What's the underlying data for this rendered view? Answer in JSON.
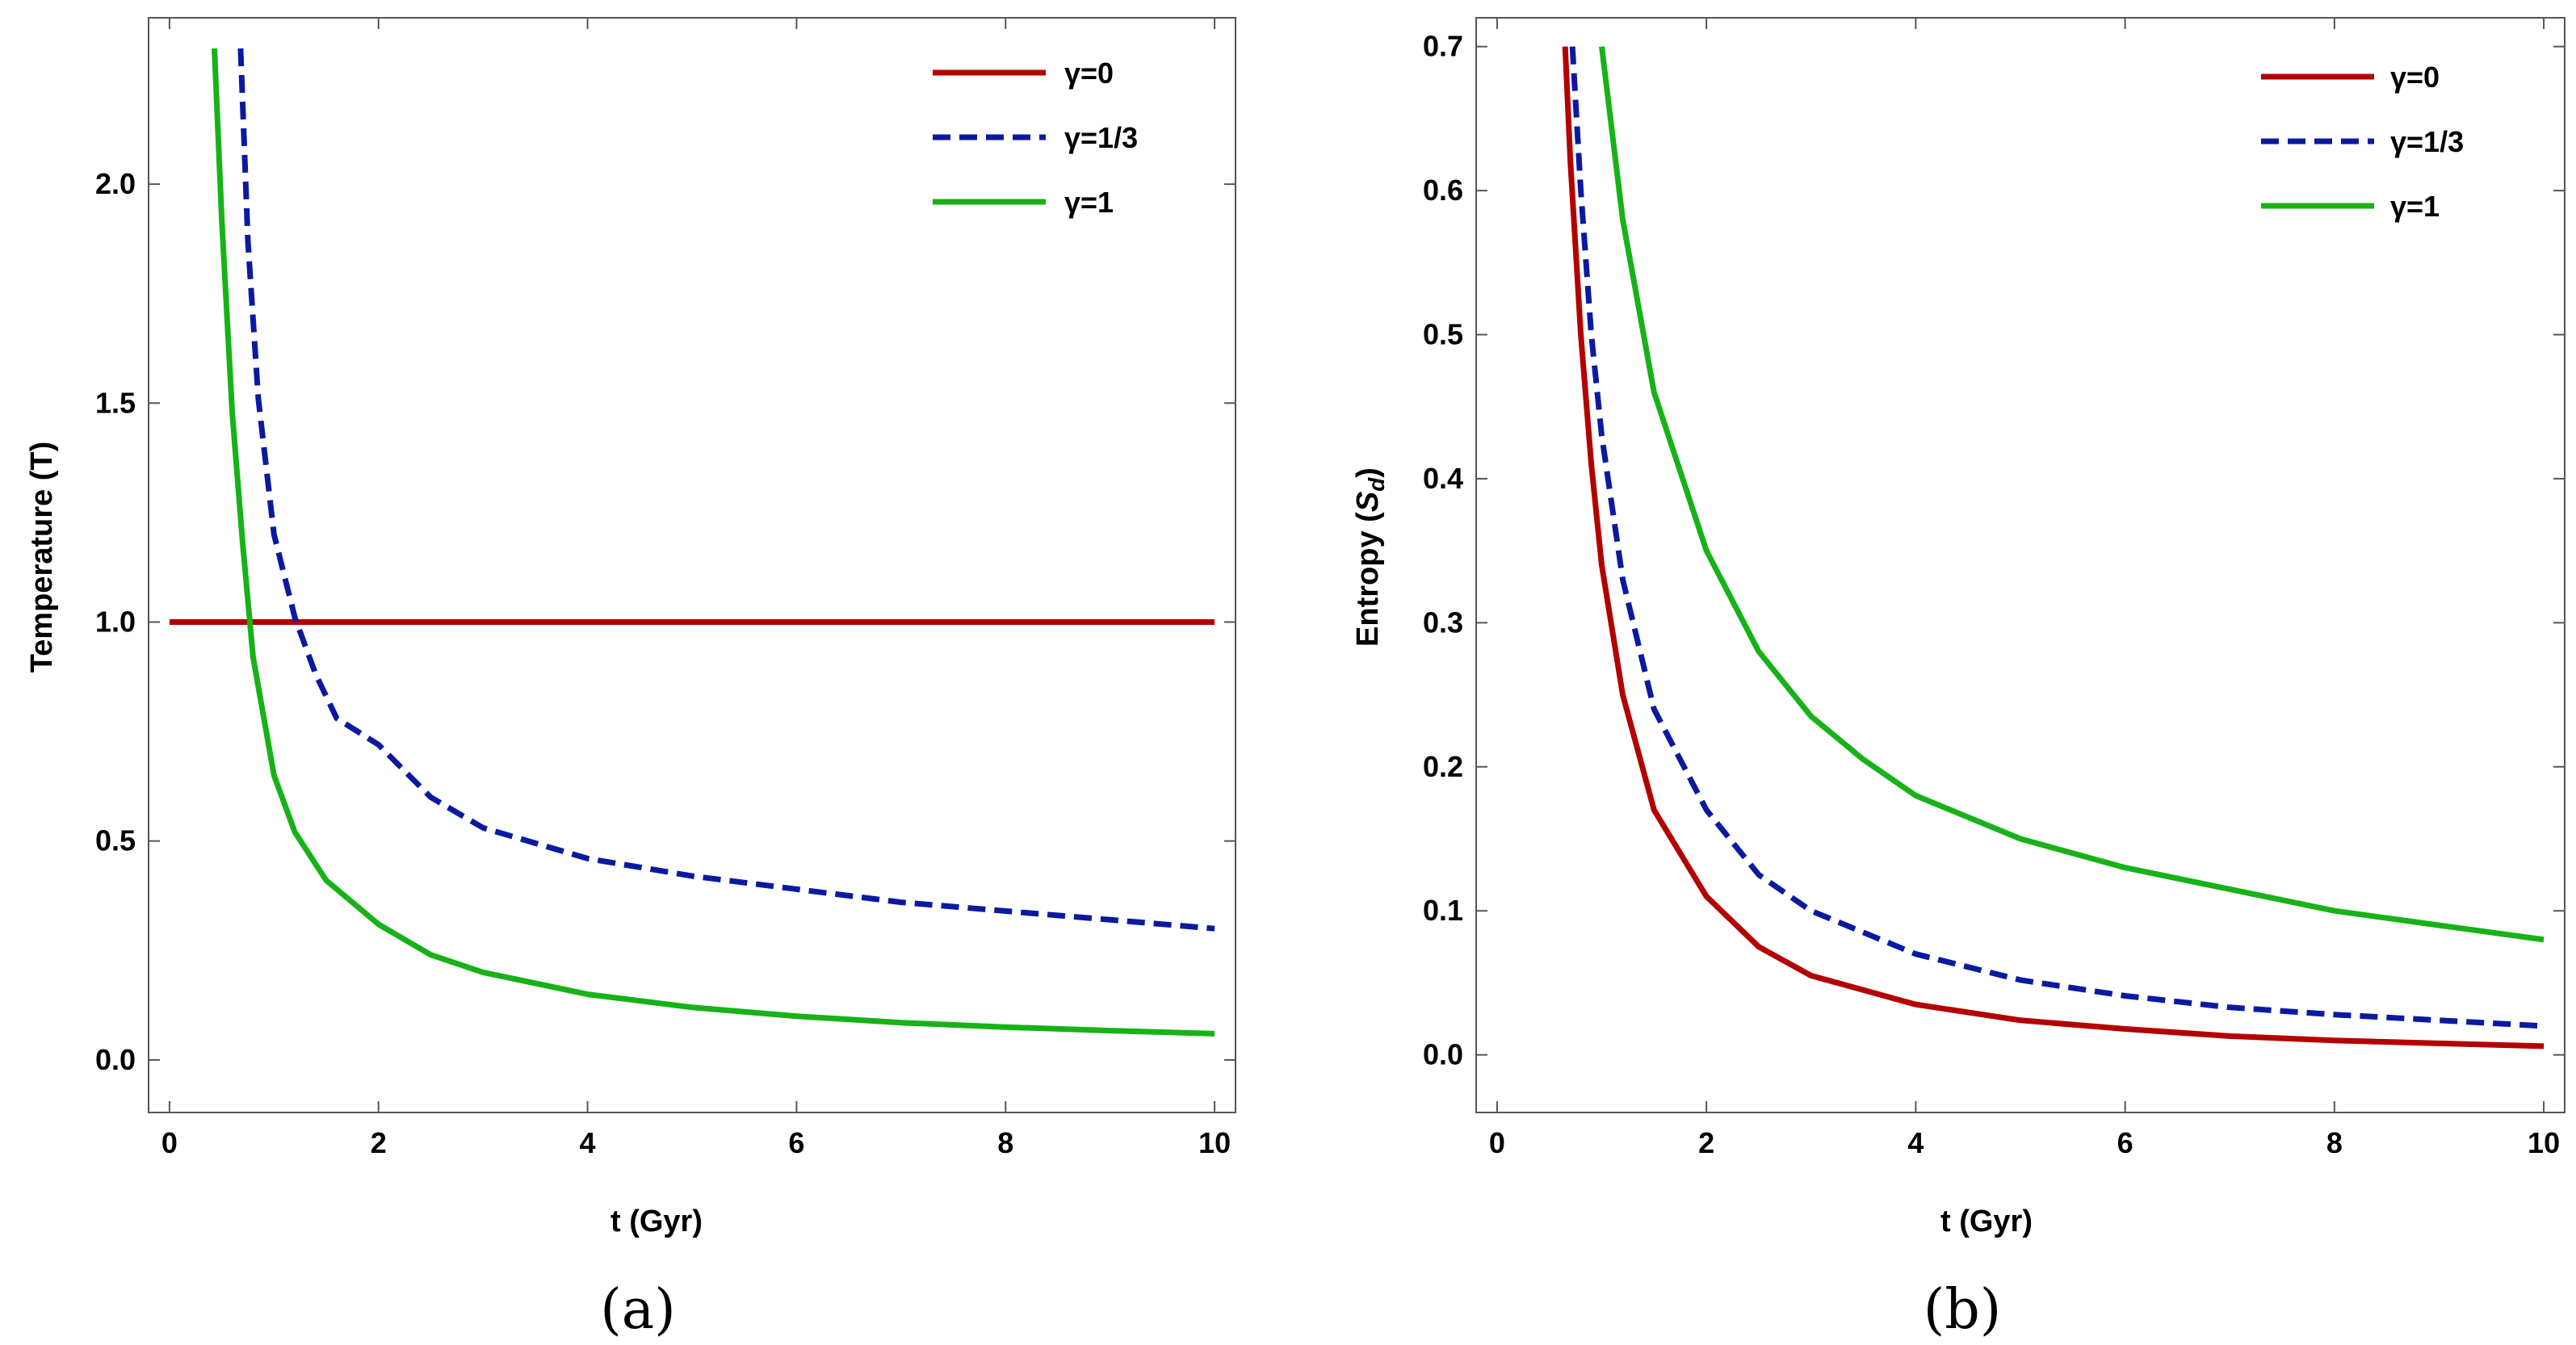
{
  "colors": {
    "gamma0": "#b30000",
    "gamma13": "#0a1aa0",
    "gamma1": "#17b217",
    "frame": "#555555"
  },
  "chart_data": [
    {
      "type": "line",
      "caption": "(a)",
      "xlabel": "t (Gyr)",
      "ylabel": "Temperature (T)",
      "xlim": [
        -0.2,
        10.2
      ],
      "ylim": [
        -0.12,
        2.38
      ],
      "xticks": [
        0,
        2,
        4,
        6,
        8,
        10
      ],
      "xtick_labels": [
        "0",
        "2",
        "4",
        "6",
        "8",
        "10"
      ],
      "yticks": [
        0.0,
        0.5,
        1.0,
        1.5,
        2.0
      ],
      "ytick_labels": [
        "0.0",
        "0.5",
        "1.0",
        "1.5",
        "2.0"
      ],
      "legend_position": "top-right",
      "series": [
        {
          "name": "γ=0",
          "color_key": "gamma0",
          "dash": "solid",
          "x": [
            0,
            10
          ],
          "y": [
            1.0,
            1.0
          ]
        },
        {
          "name": "γ=1/3",
          "color_key": "gamma13",
          "dash": "dashed",
          "x": [
            0.68,
            0.75,
            0.85,
            1.0,
            1.2,
            1.4,
            1.6,
            2.0,
            2.5,
            3.0,
            4.0,
            5.0,
            6.0,
            7.0,
            8.0,
            9.0,
            10.0
          ],
          "y": [
            2.31,
            1.87,
            1.51,
            1.2,
            1.01,
            0.88,
            0.78,
            0.72,
            0.6,
            0.53,
            0.46,
            0.42,
            0.39,
            0.36,
            0.34,
            0.32,
            0.3
          ]
        },
        {
          "name": "γ=1",
          "color_key": "gamma1",
          "dash": "solid",
          "x": [
            0.43,
            0.5,
            0.6,
            0.7,
            0.8,
            1.0,
            1.2,
            1.5,
            2.0,
            2.5,
            3.0,
            4.0,
            5.0,
            6.0,
            7.0,
            8.0,
            9.0,
            10.0
          ],
          "y": [
            2.31,
            1.92,
            1.48,
            1.18,
            0.92,
            0.65,
            0.52,
            0.41,
            0.31,
            0.24,
            0.2,
            0.15,
            0.12,
            0.1,
            0.085,
            0.075,
            0.067,
            0.06
          ]
        }
      ]
    },
    {
      "type": "line",
      "caption": "(b)",
      "xlabel": "t (Gyr)",
      "ylabel": "Entropy (S_d)",
      "ylabel_main": "Entropy (",
      "ylabel_symbol": "S",
      "ylabel_subscript": "d",
      "ylabel_close": ")",
      "xlim": [
        -0.2,
        10.2
      ],
      "ylim": [
        -0.04,
        0.72
      ],
      "xticks": [
        0,
        2,
        4,
        6,
        8,
        10
      ],
      "xtick_labels": [
        "0",
        "2",
        "4",
        "6",
        "8",
        "10"
      ],
      "yticks": [
        0.0,
        0.1,
        0.2,
        0.3,
        0.4,
        0.5,
        0.6,
        0.7
      ],
      "ytick_labels": [
        "0.0",
        "0.1",
        "0.2",
        "0.3",
        "0.4",
        "0.5",
        "0.6",
        "0.7"
      ],
      "legend_position": "top-right",
      "series": [
        {
          "name": "γ=0",
          "color_key": "gamma0",
          "dash": "solid",
          "x": [
            0.65,
            0.7,
            0.8,
            0.9,
            1.0,
            1.2,
            1.5,
            2.0,
            2.5,
            3.0,
            4.0,
            5.0,
            6.0,
            7.0,
            8.0,
            9.0,
            10.0
          ],
          "y": [
            0.7,
            0.62,
            0.5,
            0.41,
            0.34,
            0.25,
            0.17,
            0.11,
            0.075,
            0.055,
            0.035,
            0.024,
            0.018,
            0.013,
            0.01,
            0.008,
            0.006
          ]
        },
        {
          "name": "γ=1/3",
          "color_key": "gamma13",
          "dash": "dashed",
          "x": [
            0.72,
            0.8,
            0.9,
            1.0,
            1.2,
            1.5,
            2.0,
            2.5,
            3.0,
            4.0,
            5.0,
            6.0,
            7.0,
            8.0,
            9.0,
            10.0
          ],
          "y": [
            0.7,
            0.6,
            0.5,
            0.43,
            0.33,
            0.24,
            0.17,
            0.125,
            0.1,
            0.07,
            0.052,
            0.041,
            0.033,
            0.028,
            0.024,
            0.02
          ]
        },
        {
          "name": "γ=1",
          "color_key": "gamma1",
          "dash": "solid",
          "x": [
            1.0,
            1.2,
            1.5,
            2.0,
            2.5,
            3.0,
            3.5,
            4.0,
            5.0,
            6.0,
            7.0,
            8.0,
            9.0,
            10.0
          ],
          "y": [
            0.7,
            0.58,
            0.46,
            0.35,
            0.28,
            0.235,
            0.205,
            0.18,
            0.15,
            0.13,
            0.115,
            0.1,
            0.09,
            0.08
          ]
        }
      ]
    }
  ]
}
